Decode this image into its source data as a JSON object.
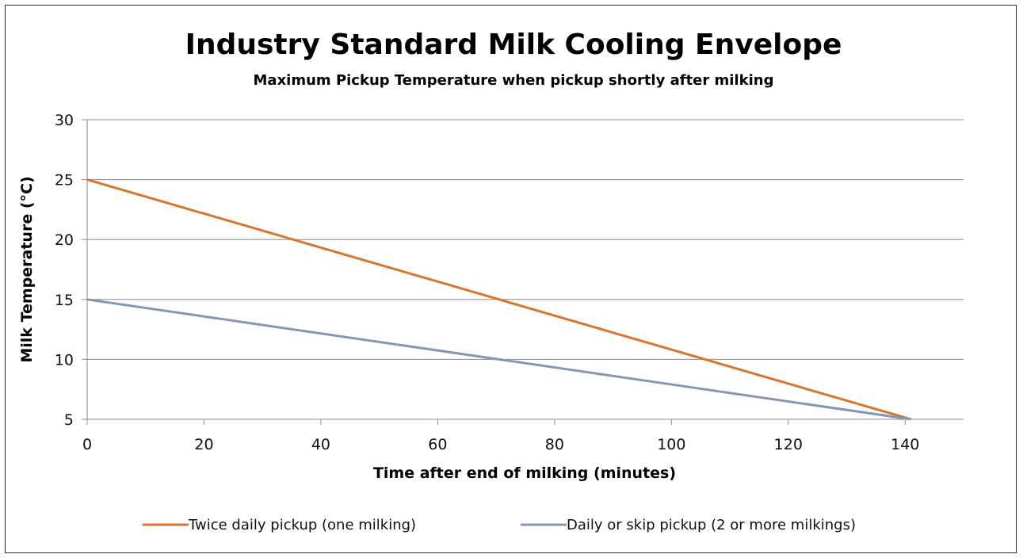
{
  "chart_data": {
    "type": "line",
    "title": "Industry Standard Milk Cooling Envelope",
    "subtitle": "Maximum Pickup Temperature when pickup shortly after milking",
    "xlabel": "Time after end of milking (minutes)",
    "ylabel": "Milk Temperature (°C)",
    "xlim": [
      0,
      150
    ],
    "ylim": [
      5,
      30
    ],
    "xticks": [
      0,
      20,
      40,
      60,
      80,
      100,
      120,
      140
    ],
    "yticks": [
      5,
      10,
      15,
      20,
      25,
      30
    ],
    "grid": "horizontal",
    "legend_position": "bottom",
    "series": [
      {
        "name": "Twice daily pickup (one milking)",
        "color": "#D9762D",
        "x": [
          0,
          141
        ],
        "y": [
          25,
          5
        ]
      },
      {
        "name": "Daily or skip pickup (2 or more milkings)",
        "color": "#8497B5",
        "x": [
          0,
          141
        ],
        "y": [
          15,
          5
        ]
      }
    ]
  }
}
